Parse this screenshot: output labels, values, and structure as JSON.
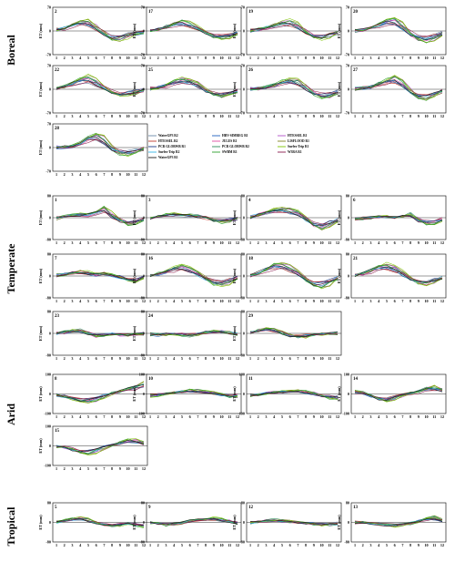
{
  "chart_data": {
    "type": "line",
    "ylabel": "ET (mm)",
    "x": [
      1,
      2,
      3,
      4,
      5,
      6,
      7,
      8,
      9,
      10,
      11,
      12
    ],
    "legend": [
      {
        "name": "WaterGP3 R2",
        "color": "#6a8aa8"
      },
      {
        "name": "HBV-SIMREG R1",
        "color": "#1f5fbf"
      },
      {
        "name": "HTESSEL R1",
        "color": "#b14fc8"
      },
      {
        "name": "HTESSEL R2",
        "color": "#c0392b"
      },
      {
        "name": "JULES R1",
        "color": "#e04ba0"
      },
      {
        "name": "LISFLOOD R1",
        "color": "#7f7f1f"
      },
      {
        "name": "PCR GLOBWB R1",
        "color": "#1a3a8a"
      },
      {
        "name": "PCR GLOBWB R2",
        "color": "#2e8b57"
      },
      {
        "name": "Surfex-Trip R1",
        "color": "#7cc400"
      },
      {
        "name": "Surfex-Trip R2",
        "color": "#33b7e8"
      },
      {
        "name": "SWBM R1",
        "color": "#2ca02c"
      },
      {
        "name": "W3RA R1",
        "color": "#8b1a4a"
      },
      {
        "name": "WaterGP3 R1",
        "color": "#1b1b1b"
      }
    ],
    "zones": [
      {
        "name": "Boreal",
        "ylim": [
          -70,
          70
        ],
        "yticks": [
          70,
          0,
          -70
        ],
        "panels": [
          {
            "id": "2",
            "base": [
              3,
              8,
              18,
              27,
              28,
              10,
              -8,
              -25,
              -24,
              -15,
              -9,
              -4
            ]
          },
          {
            "id": "17",
            "base": [
              2,
              5,
              12,
              22,
              28,
              22,
              10,
              -6,
              -16,
              -22,
              -18,
              -8
            ]
          },
          {
            "id": "19",
            "base": [
              2,
              4,
              10,
              18,
              26,
              28,
              16,
              -4,
              -18,
              -22,
              -14,
              -6
            ]
          },
          {
            "id": "20",
            "base": [
              1,
              3,
              8,
              18,
              30,
              34,
              14,
              -10,
              -26,
              -30,
              -20,
              -8
            ]
          },
          {
            "id": "22",
            "base": [
              2,
              8,
              18,
              30,
              38,
              22,
              4,
              -12,
              -18,
              -16,
              -10,
              -4
            ]
          },
          {
            "id": "25",
            "base": [
              2,
              4,
              12,
              24,
              30,
              26,
              14,
              -4,
              -16,
              -20,
              -14,
              -6
            ]
          },
          {
            "id": "26",
            "base": [
              1,
              2,
              6,
              12,
              22,
              30,
              24,
              6,
              -14,
              -24,
              -20,
              -10
            ]
          },
          {
            "id": "27",
            "base": [
              1,
              3,
              8,
              16,
              26,
              34,
              20,
              -8,
              -24,
              -28,
              -18,
              -6
            ]
          },
          {
            "id": "28",
            "base": [
              1,
              2,
              4,
              12,
              28,
              40,
              22,
              -4,
              -18,
              -20,
              -12,
              -4
            ]
          }
        ]
      },
      {
        "name": "Temperate",
        "ylim": [
          -80,
          80
        ],
        "yticks": [
          80,
          0,
          -80
        ],
        "panels": [
          {
            "id": "1",
            "base": [
              -2,
              4,
              10,
              12,
              10,
              20,
              40,
              8,
              -12,
              -24,
              -18,
              -6
            ]
          },
          {
            "id": "3",
            "base": [
              -2,
              4,
              12,
              14,
              12,
              8,
              6,
              0,
              -10,
              -16,
              -10,
              -4
            ]
          },
          {
            "id": "4",
            "base": [
              2,
              10,
              22,
              30,
              34,
              28,
              18,
              -4,
              -30,
              -40,
              -24,
              -10
            ]
          },
          {
            "id": "6",
            "base": [
              -4,
              -2,
              0,
              4,
              4,
              0,
              6,
              14,
              -10,
              -22,
              -20,
              -8
            ]
          },
          {
            "id": "7",
            "base": [
              2,
              6,
              12,
              16,
              12,
              4,
              10,
              4,
              -4,
              -16,
              -22,
              -8
            ]
          },
          {
            "id": "16",
            "base": [
              2,
              8,
              18,
              30,
              34,
              26,
              10,
              -10,
              -28,
              -32,
              -22,
              -8
            ]
          },
          {
            "id": "18",
            "base": [
              2,
              10,
              26,
              40,
              42,
              30,
              12,
              -14,
              -34,
              -38,
              -26,
              -10
            ]
          },
          {
            "id": "21",
            "base": [
              2,
              8,
              20,
              36,
              40,
              30,
              10,
              -10,
              -26,
              -30,
              -20,
              -8
            ]
          },
          {
            "id": "23",
            "base": [
              0,
              4,
              10,
              12,
              2,
              -10,
              -6,
              -2,
              -8,
              -6,
              -2,
              -2
            ]
          },
          {
            "id": "24",
            "base": [
              -4,
              -6,
              -4,
              -2,
              -6,
              -8,
              -4,
              4,
              8,
              6,
              2,
              -2
            ]
          },
          {
            "id": "29",
            "base": [
              2,
              10,
              18,
              14,
              4,
              -8,
              -14,
              -10,
              -6,
              -4,
              -2,
              0
            ]
          }
        ]
      },
      {
        "name": "Arid",
        "ylim": [
          -100,
          100
        ],
        "yticks": [
          100,
          0,
          -100
        ],
        "panels": [
          {
            "id": "8",
            "base": [
              -6,
              -14,
              -26,
              -38,
              -40,
              -30,
              -12,
              4,
              14,
              26,
              40,
              54
            ]
          },
          {
            "id": "10",
            "base": [
              -10,
              -6,
              0,
              8,
              14,
              18,
              16,
              12,
              6,
              -4,
              -14,
              -14
            ]
          },
          {
            "id": "11",
            "base": [
              -8,
              -4,
              2,
              8,
              12,
              14,
              16,
              10,
              2,
              -10,
              -22,
              -20
            ]
          },
          {
            "id": "14",
            "base": [
              14,
              6,
              -10,
              -28,
              -36,
              -22,
              -6,
              4,
              14,
              28,
              38,
              20
            ]
          },
          {
            "id": "15",
            "base": [
              -4,
              -10,
              -20,
              -34,
              -38,
              -26,
              -10,
              4,
              14,
              30,
              26,
              16
            ]
          }
        ]
      },
      {
        "name": "Tropical",
        "ylim": [
          -80,
          80
        ],
        "yticks": [
          80,
          0,
          -80
        ],
        "panels": [
          {
            "id": "5",
            "base": [
              2,
              6,
              14,
              18,
              12,
              -4,
              -12,
              -14,
              -10,
              -6,
              -10,
              -16
            ]
          },
          {
            "id": "9",
            "base": [
              -2,
              -6,
              -10,
              -8,
              -2,
              6,
              10,
              14,
              16,
              12,
              4,
              -4
            ]
          },
          {
            "id": "12",
            "base": [
              -2,
              2,
              6,
              10,
              8,
              4,
              0,
              -4,
              -8,
              -10,
              -8,
              -6
            ]
          },
          {
            "id": "13",
            "base": [
              0,
              0,
              -4,
              -8,
              -12,
              -14,
              -10,
              -6,
              4,
              16,
              22,
              10
            ]
          }
        ]
      }
    ]
  }
}
